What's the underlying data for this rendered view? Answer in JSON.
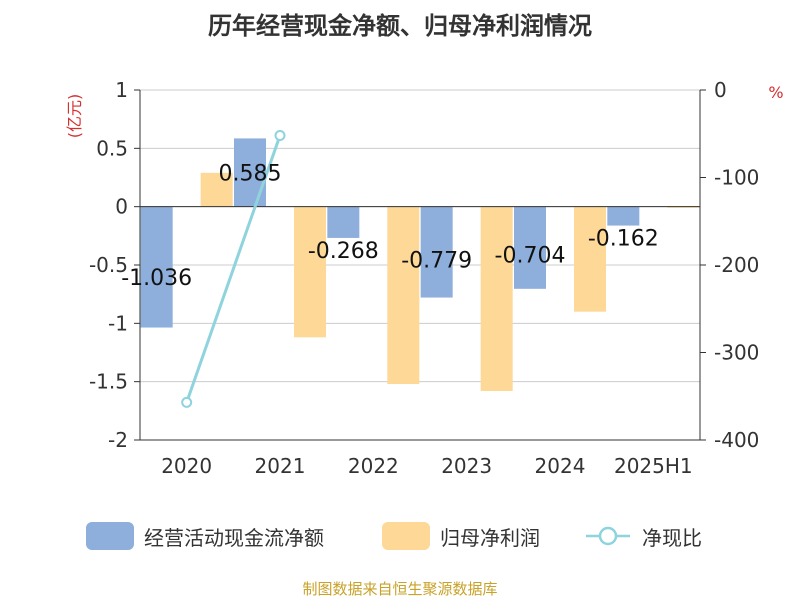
{
  "chart_data": {
    "type": "bar",
    "title": "历年经营现金净额、归母净利润情况",
    "left_axis_unit": "(亿元)",
    "right_axis_unit": "%",
    "categories": [
      "2020",
      "2021",
      "2022",
      "2023",
      "2024",
      "2025H1"
    ],
    "left_ylim": [
      -2,
      1
    ],
    "left_ticks": [
      1,
      0.5,
      0,
      -0.5,
      -1,
      -1.5,
      -2
    ],
    "left_tick_labels": [
      "1",
      "0.5",
      "0",
      "-0.5",
      "-1",
      "-1.5",
      "-2"
    ],
    "right_ylim": [
      -400,
      0
    ],
    "right_ticks": [
      0,
      -100,
      -200,
      -300,
      -400
    ],
    "right_tick_labels": [
      "0",
      "-100",
      "-200",
      "-300",
      "-400"
    ],
    "series": [
      {
        "name": "经营活动现金流净额",
        "type": "bar",
        "axis": "left",
        "color": "#8eaedc",
        "values": [
          -1.036,
          0.585,
          -0.268,
          -0.779,
          -0.704,
          -0.162
        ],
        "data_labels": [
          "-1.036",
          "0.585",
          "-0.268",
          "-0.779",
          "-0.704",
          "-0.162"
        ]
      },
      {
        "name": "归母净利润",
        "type": "bar",
        "axis": "left",
        "color": "#fdd896",
        "values": [
          0.29,
          -1.12,
          -1.52,
          -1.58,
          -0.9,
          -0.01
        ]
      },
      {
        "name": "净现比",
        "type": "line",
        "axis": "right",
        "color": "#8fd3dd",
        "values": [
          -357,
          -52,
          null,
          null,
          null,
          null
        ]
      }
    ],
    "grid": true,
    "legend_position": "bottom"
  },
  "source_note": "制图数据来自恒生聚源数据库"
}
